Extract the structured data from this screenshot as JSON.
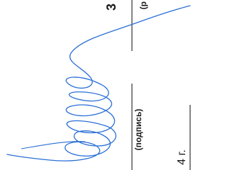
{
  "document": {
    "top_fragment": "3",
    "top_caption": "(р",
    "signature_caption": "(подпись)",
    "date_fragment": "4 г."
  }
}
